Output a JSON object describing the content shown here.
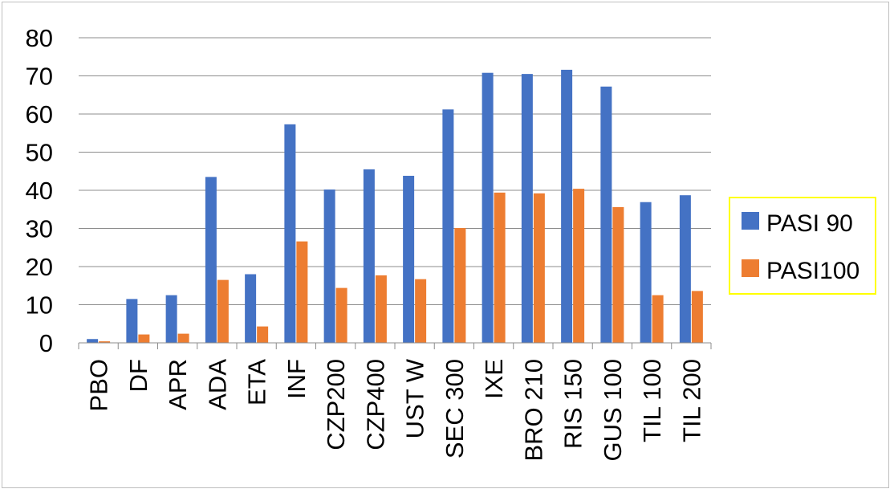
{
  "chart_data": {
    "type": "bar",
    "categories": [
      "PBO",
      "DF",
      "APR",
      "ADA",
      "ETA",
      "INF",
      "CZP200",
      "CZP400",
      "UST W",
      "SEC 300",
      "IXE",
      "BRO 210",
      "RIS 150",
      "GUS 100",
      "TIL 100",
      "TIL 200"
    ],
    "series": [
      {
        "name": "PASI 90",
        "color": "#4472C4",
        "values": [
          1.0,
          11.5,
          12.5,
          43.5,
          18.0,
          57.3,
          40.2,
          45.5,
          43.8,
          61.2,
          70.8,
          70.5,
          71.6,
          67.2,
          36.9,
          38.7
        ]
      },
      {
        "name": "PASI100",
        "color": "#ED7D31",
        "values": [
          0.4,
          2.2,
          2.4,
          16.5,
          4.3,
          26.6,
          14.4,
          17.7,
          16.7,
          30.1,
          39.4,
          39.2,
          40.4,
          35.6,
          12.5,
          13.6
        ]
      }
    ],
    "title": "",
    "xlabel": "",
    "ylabel": "",
    "ylim": [
      0,
      80
    ],
    "yticks": [
      0,
      10,
      20,
      30,
      40,
      50,
      60,
      70,
      80
    ],
    "grid": true,
    "legend_position": "right",
    "legend_border_color": "#FFFF00",
    "gridline_color": "#8C8C8C"
  }
}
